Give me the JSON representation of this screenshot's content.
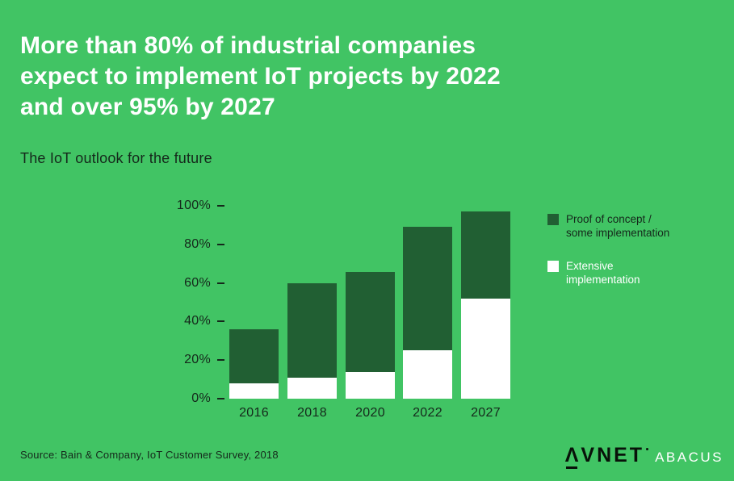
{
  "page": {
    "title": "More than 80% of industrial companies\nexpect to implement IoT projects by 2022\nand over 95% by 2027",
    "subtitle": "The IoT outlook for the future",
    "source": "Source: Bain & Company, IoT Customer Survey, 2018"
  },
  "colors": {
    "background": "#41c464",
    "dark_green": "#215f33",
    "white": "#ffffff",
    "dark_text": "#15281b"
  },
  "chart_data": {
    "type": "bar",
    "stacked": true,
    "title": "The IoT outlook for the future",
    "categories": [
      "2016",
      "2018",
      "2020",
      "2022",
      "2027"
    ],
    "series": [
      {
        "name": "Extensive implementation",
        "color": "#ffffff",
        "values": [
          8,
          11,
          14,
          25,
          52
        ]
      },
      {
        "name": "Proof of concept / some implementation",
        "color": "#215f33",
        "values": [
          28,
          49,
          52,
          64,
          45
        ]
      }
    ],
    "totals": [
      36,
      60,
      66,
      89,
      97
    ],
    "xlabel": "",
    "ylabel": "",
    "ylim": [
      0,
      100
    ],
    "yticks": [
      0,
      20,
      40,
      60,
      80,
      100
    ],
    "ytick_labels": [
      "0%",
      "20%",
      "40%",
      "60%",
      "80%",
      "100%"
    ],
    "grid": false,
    "legend_position": "right"
  },
  "legend": {
    "items": [
      {
        "label_line1": "Proof of concept /",
        "label_line2": "some implementation",
        "color": "#215f33",
        "text_style": "dark"
      },
      {
        "label_line1": "Extensive",
        "label_line2": "implementation",
        "color": "#ffffff",
        "text_style": "light"
      }
    ]
  },
  "logo": {
    "brand": "AVNET",
    "sub": "ABACUS"
  }
}
